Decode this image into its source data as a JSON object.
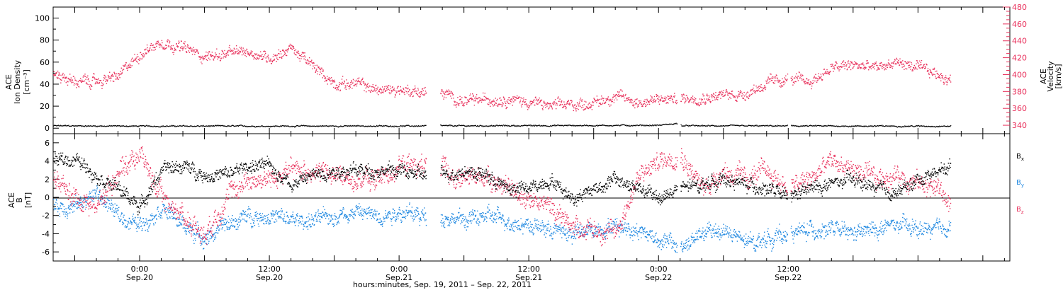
{
  "chart_data": [
    {
      "type": "scatter",
      "panel": "top",
      "left_axis_label": [
        "ACE",
        "Ion Density",
        "[cm⁻³]"
      ],
      "right_axis_label": [
        "ACE",
        "Velocity",
        "[km/s]"
      ],
      "left_ylim": [
        -5,
        110
      ],
      "left_yticks": [
        "0",
        "20",
        "40",
        "60",
        "80",
        "100"
      ],
      "right_ylim": [
        330,
        480
      ],
      "right_yticks": [
        "340",
        "360",
        "380",
        "400",
        "420",
        "440",
        "460",
        "480"
      ],
      "xlim_hours_from_sep19_00": [
        -8,
        80.5
      ],
      "gaps_hours": [
        [
          26.5,
          27.8
        ],
        [
          49.7,
          50.0
        ],
        [
          59.9,
          60.2
        ]
      ],
      "series": [
        {
          "name": "Ion Density",
          "axis": "left",
          "color": "#000000",
          "x": [
            -8,
            0,
            24,
            48,
            49.6,
            50.2,
            72,
            75
          ],
          "values": [
            2.5,
            2.2,
            2.3,
            3,
            4.5,
            2.5,
            2.2,
            2.2
          ]
        },
        {
          "name": "Velocity",
          "axis": "right",
          "color": "#e8305b",
          "x": [
            -8,
            -6,
            -4,
            -2,
            0,
            2,
            4,
            6,
            8,
            10,
            12,
            14,
            16,
            18,
            20,
            22,
            24,
            26,
            28,
            30,
            32,
            34,
            36,
            38,
            40,
            42,
            44,
            46,
            48,
            50,
            52,
            54,
            56,
            58,
            60,
            62,
            64,
            66,
            68,
            70,
            72,
            74,
            75
          ],
          "values": [
            402,
            392,
            392,
            398,
            425,
            440,
            432,
            422,
            425,
            428,
            420,
            432,
            410,
            390,
            390,
            382,
            383,
            380,
            378,
            368,
            371,
            372,
            368,
            363,
            365,
            367,
            375,
            368,
            370,
            372,
            374,
            376,
            378,
            390,
            395,
            392,
            408,
            412,
            408,
            415,
            408,
            400,
            395
          ]
        }
      ]
    },
    {
      "type": "scatter",
      "panel": "bottom",
      "left_axis_label": [
        "ACE",
        "B",
        "[nT]"
      ],
      "ylim": [
        -7,
        7
      ],
      "yticks": [
        "-6",
        "-4",
        "-2",
        "0",
        "2",
        "4",
        "6"
      ],
      "xlim_hours_from_sep19_00": [
        -8,
        80.5
      ],
      "gaps_hours": [
        [
          26.5,
          27.8
        ],
        [
          49.7,
          50.0
        ],
        [
          59.9,
          60.2
        ]
      ],
      "xticks": [
        {
          "x": 0,
          "time": "0:00",
          "date": "Sep.20"
        },
        {
          "x": 12,
          "time": "12:00",
          "date": "Sep.20"
        },
        {
          "x": 24,
          "time": "0:00",
          "date": "Sep.21"
        },
        {
          "x": 36,
          "time": "12:00",
          "date": "Sep.21"
        },
        {
          "x": 48,
          "time": "0:00",
          "date": "Sep.22"
        },
        {
          "x": 60,
          "time": "12:00",
          "date": "Sep.22"
        }
      ],
      "xlabel": "hours:minutes, Sep. 19, 2011 – Sep. 22, 2011",
      "series": [
        {
          "name": "Bx",
          "label_main": "B",
          "label_sub": "x",
          "color": "#000000",
          "x": [
            -8,
            -6,
            -4,
            -2,
            0,
            2,
            4,
            6,
            8,
            10,
            12,
            14,
            16,
            18,
            20,
            22,
            24,
            26,
            28,
            30,
            32,
            34,
            36,
            38,
            40,
            42,
            44,
            46,
            48,
            50,
            52,
            54,
            56,
            58,
            60,
            62,
            64,
            66,
            68,
            70,
            72,
            74,
            75
          ],
          "values": [
            4,
            4.3,
            2.5,
            1,
            -1,
            3,
            3.5,
            2.5,
            2.5,
            3.5,
            3.5,
            1.5,
            2.5,
            3,
            3,
            3,
            3,
            2.5,
            2.5,
            3,
            2.5,
            1,
            1,
            2,
            0,
            1,
            2,
            1,
            0,
            1,
            1.5,
            2,
            1.5,
            1,
            0,
            1,
            1.5,
            2,
            1,
            0.5,
            2,
            3,
            3.5
          ]
        },
        {
          "name": "By",
          "label_main": "B",
          "label_sub": "y",
          "color": "#1b86e0",
          "x": [
            -8,
            -6,
            -4,
            -2,
            0,
            2,
            4,
            6,
            8,
            10,
            12,
            14,
            16,
            18,
            20,
            22,
            24,
            26,
            28,
            30,
            32,
            34,
            36,
            38,
            40,
            42,
            44,
            46,
            48,
            50,
            52,
            54,
            56,
            58,
            60,
            62,
            64,
            66,
            68,
            70,
            72,
            74,
            75
          ],
          "values": [
            -1,
            -1,
            0.5,
            -2,
            -3,
            -1,
            -3,
            -4.5,
            -3,
            -2,
            -2,
            -2.5,
            -2.5,
            -2,
            -1.5,
            -2,
            -1.5,
            -2,
            -2,
            -2.5,
            -2,
            -2.5,
            -3,
            -3.5,
            -4,
            -3.5,
            -3,
            -3.5,
            -4.5,
            -5.5,
            -4,
            -3.5,
            -5,
            -4.5,
            -4,
            -3.5,
            -3.5,
            -4,
            -3.5,
            -3,
            -3.5,
            -3.5,
            -3
          ]
        },
        {
          "name": "Bz",
          "label_main": "B",
          "label_sub": "z",
          "color": "#e8305b",
          "x": [
            -8,
            -6,
            -4,
            -2,
            0,
            2,
            4,
            6,
            8,
            10,
            12,
            14,
            16,
            18,
            20,
            22,
            24,
            26,
            28,
            30,
            32,
            34,
            36,
            38,
            40,
            42,
            44,
            46,
            48,
            50,
            52,
            54,
            56,
            58,
            60,
            62,
            64,
            66,
            68,
            70,
            72,
            74,
            75
          ],
          "values": [
            2,
            0,
            -1,
            3,
            5,
            0,
            -2,
            -4,
            0,
            2,
            2,
            3,
            3,
            2.5,
            2,
            2,
            3.5,
            3.5,
            3,
            2,
            2.5,
            1,
            0,
            -1,
            -3,
            -3.5,
            -4,
            2,
            4,
            5,
            1,
            3,
            2,
            3,
            1,
            2,
            4,
            3,
            2,
            2.5,
            1.5,
            1,
            -1
          ]
        }
      ]
    }
  ]
}
